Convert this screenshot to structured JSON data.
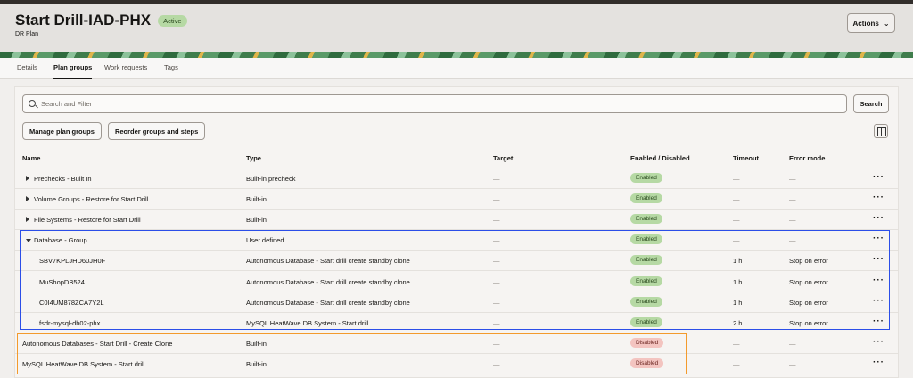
{
  "header": {
    "title": "Start Drill-IAD-PHX",
    "status": "Active",
    "subtitle": "DR Plan",
    "actions_label": "Actions"
  },
  "tabs": [
    {
      "label": "Details"
    },
    {
      "label": "Plan groups",
      "active": true
    },
    {
      "label": "Work requests"
    },
    {
      "label": "Tags"
    }
  ],
  "toolbar": {
    "search_placeholder": "Search and Filter",
    "search_button": "Search",
    "manage_button": "Manage plan groups",
    "reorder_button": "Reorder groups and steps"
  },
  "columns": [
    "Name",
    "Type",
    "Target",
    "Enabled / Disabled",
    "Timeout",
    "Error mode"
  ],
  "rows": [
    {
      "name": "Prechecks - Built In",
      "type": "Built-in precheck",
      "target": "—",
      "state": "Enabled",
      "timeout": "—",
      "error": "—",
      "expander": "collapsed"
    },
    {
      "name": "Volume Groups - Restore for Start Drill",
      "type": "Built-in",
      "target": "—",
      "state": "Enabled",
      "timeout": "—",
      "error": "—",
      "expander": "collapsed"
    },
    {
      "name": "File Systems - Restore for Start Drill",
      "type": "Built-in",
      "target": "—",
      "state": "Enabled",
      "timeout": "—",
      "error": "—",
      "expander": "collapsed"
    },
    {
      "name": "Database - Group",
      "type": "User defined",
      "target": "—",
      "state": "Enabled",
      "timeout": "—",
      "error": "—",
      "expander": "expanded"
    },
    {
      "name": "SBV7KPLJHD60JH0F",
      "type": "Autonomous Database - Start drill create standby clone",
      "target": "—",
      "state": "Enabled",
      "timeout": "1 h",
      "error": "Stop on error",
      "child": true
    },
    {
      "name": "MuShopDB524",
      "type": "Autonomous Database - Start drill create standby clone",
      "target": "—",
      "state": "Enabled",
      "timeout": "1 h",
      "error": "Stop on error",
      "child": true
    },
    {
      "name": "C0I4UM878ZCA7Y2L",
      "type": "Autonomous Database - Start drill create standby clone",
      "target": "—",
      "state": "Enabled",
      "timeout": "1 h",
      "error": "Stop on error",
      "child": true
    },
    {
      "name": "fsdr-mysql-db02-phx",
      "type": "MySQL HeatWave DB System - Start drill",
      "target": "—",
      "state": "Enabled",
      "timeout": "2 h",
      "error": "Stop on error",
      "child": true
    },
    {
      "name": "Autonomous Databases - Start Drill - Create Clone",
      "type": "Built-in",
      "target": "—",
      "state": "Disabled",
      "timeout": "—",
      "error": "—"
    },
    {
      "name": "MySQL HeatWave DB System - Start drill",
      "type": "Built-in",
      "target": "—",
      "state": "Disabled",
      "timeout": "—",
      "error": "—"
    }
  ],
  "more_label": "···",
  "colors": {
    "enabled": "#b6d9a4",
    "disabled": "#f3c4c0",
    "highlight_blue": "#2b4ee8",
    "highlight_orange": "#f39a2c"
  }
}
